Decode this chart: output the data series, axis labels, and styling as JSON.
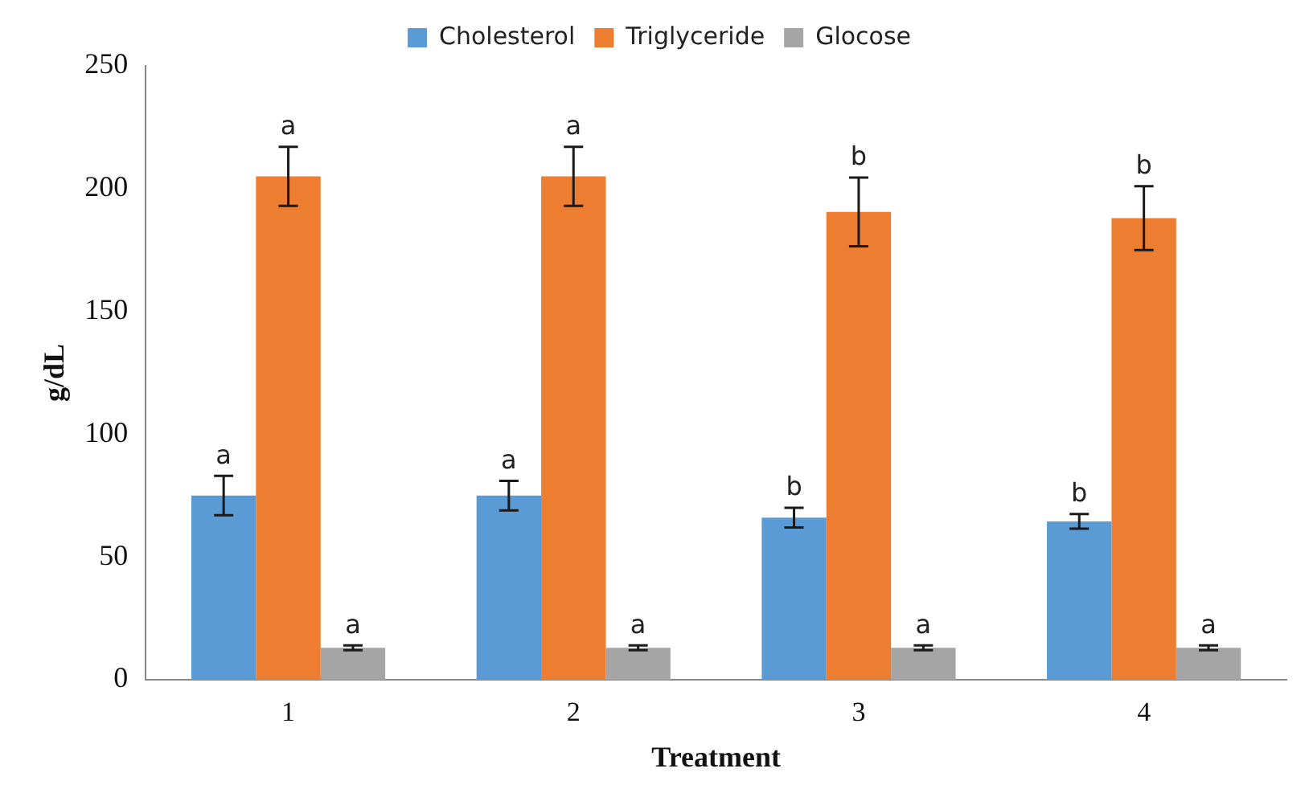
{
  "chart_data": {
    "type": "bar",
    "xlabel": "Treatment",
    "ylabel": "g/dL",
    "categories": [
      "1",
      "2",
      "3",
      "4"
    ],
    "series": [
      {
        "name": "Cholesterol",
        "color": "#5b9bd5",
        "values": [
          75,
          75,
          66,
          64.5
        ],
        "errors": [
          8,
          6,
          4,
          3
        ],
        "value_labels": [
          "a",
          "a",
          "b",
          "b"
        ]
      },
      {
        "name": "Triglyceride",
        "color": "#ed7d31",
        "values": [
          205,
          205,
          190.5,
          188
        ],
        "errors": [
          12,
          12,
          14,
          13
        ],
        "value_labels": [
          "a",
          "a",
          "b",
          "b"
        ]
      },
      {
        "name": "Glocose",
        "color": "#a5a5a5",
        "values": [
          13,
          13,
          13,
          13
        ],
        "errors": [
          1,
          1,
          1,
          1
        ],
        "value_labels": [
          "a",
          "a",
          "a",
          "a"
        ]
      }
    ],
    "ylim": [
      0,
      250
    ],
    "yticks": [
      0,
      50,
      100,
      150,
      200,
      250
    ],
    "grid": false,
    "legend": "top"
  }
}
